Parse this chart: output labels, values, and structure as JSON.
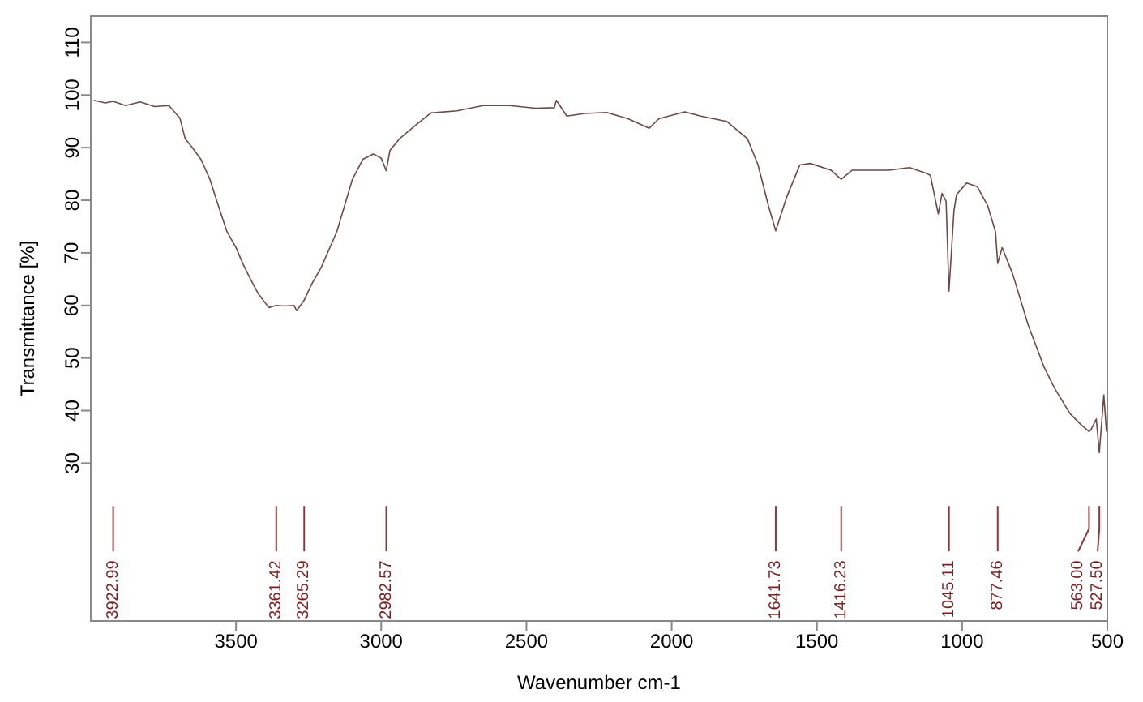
{
  "chart_data": {
    "type": "line",
    "xlabel": "Wavenumber cm-1",
    "ylabel": "Transmittance [%]",
    "xlim": [
      4000,
      500
    ],
    "xticks": [
      3500,
      3000,
      2500,
      2000,
      1500,
      1000,
      500
    ],
    "ylim": [
      0,
      115
    ],
    "yticks": [
      30,
      40,
      50,
      60,
      70,
      80,
      90,
      100,
      110
    ],
    "marker": "none",
    "line_style": "solid",
    "series": [
      {
        "color": "#6b4a4a",
        "x": [
          3990,
          3950,
          3922.99,
          3880,
          3830,
          3780,
          3731,
          3693,
          3675,
          3650,
          3621,
          3590,
          3567,
          3531,
          3500,
          3477,
          3450,
          3423,
          3387,
          3361.42,
          3333,
          3300,
          3291,
          3265.29,
          3240,
          3207,
          3153,
          3099,
          3063,
          3027,
          3000,
          2982.57,
          2970,
          2937,
          2883,
          2829,
          2739,
          2649,
          2559,
          2469,
          2404,
          2397,
          2361,
          2300,
          2224,
          2150,
          2077,
          2044,
          1955,
          1900,
          1811,
          1739,
          1703,
          1667,
          1641.73,
          1604,
          1559,
          1523,
          1451,
          1416.23,
          1379,
          1325,
          1253,
          1181,
          1118,
          1109,
          1082,
          1069,
          1055,
          1045.11,
          1028,
          1019,
          984,
          948,
          912,
          885,
          877.46,
          862,
          826,
          772,
          718,
          682,
          628,
          592,
          563.0,
          556,
          538,
          527.5,
          512,
          503
        ],
        "values": [
          99,
          98.5,
          98.8,
          98,
          98.7,
          97.8,
          98,
          95.6,
          91.7,
          90,
          87.8,
          84,
          80,
          74,
          71,
          68,
          65,
          62.2,
          59.6,
          60,
          59.9,
          60,
          59,
          61,
          64,
          67.2,
          74,
          84,
          87.8,
          88.8,
          88,
          85.6,
          89.5,
          91.7,
          94.2,
          96.6,
          97,
          98,
          98,
          97.5,
          97.6,
          99,
          96,
          96.5,
          96.7,
          95.5,
          93.7,
          95.5,
          96.8,
          96,
          95,
          91.7,
          86.8,
          79,
          74.2,
          80.6,
          86.7,
          87,
          85.7,
          84,
          85.7,
          85.7,
          85.7,
          86.2,
          85,
          84.7,
          77.4,
          81.3,
          79.8,
          62.7,
          78,
          81.1,
          83.3,
          82.6,
          79,
          74,
          68,
          71,
          66,
          56.2,
          48.3,
          44.3,
          39.4,
          37.4,
          36,
          36.4,
          38.4,
          32,
          43,
          36
        ]
      }
    ],
    "annotations": [
      {
        "text": "3922.99",
        "x": 3922.99
      },
      {
        "text": "3361.42",
        "x": 3361.42
      },
      {
        "text": "3265.29",
        "x": 3265.29
      },
      {
        "text": "2982.57",
        "x": 2982.57
      },
      {
        "text": "1641.73",
        "x": 1641.73
      },
      {
        "text": "1416.23",
        "x": 1416.23
      },
      {
        "text": "1045.11",
        "x": 1045.11
      },
      {
        "text": "877.46",
        "x": 877.46
      },
      {
        "text": "563.00",
        "x": 563.0
      },
      {
        "text": "527.50",
        "x": 527.5
      }
    ]
  }
}
